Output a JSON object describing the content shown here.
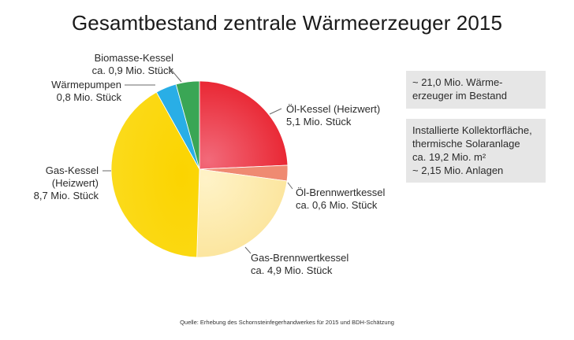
{
  "chart_data": {
    "type": "pie",
    "title": "Gesamtbestand zentrale Wärmeerzeuger 2015",
    "unit": "Mio. Stück",
    "start_angle": "12 o'clock, clockwise",
    "slices": [
      {
        "name": "Öl-Kessel (Heizwert)",
        "value": 5.1,
        "label_value": "5,1 Mio. Stück",
        "color": "#e8212e"
      },
      {
        "name": "Öl-Brennwertkessel",
        "value": 0.6,
        "label_value": "ca. 0,6 Mio. Stück",
        "color": "#ef8a72"
      },
      {
        "name": "Gas-Brennwertkessel",
        "value": 4.9,
        "label_value": "ca. 4,9 Mio. Stück",
        "color": "#fdeaa6"
      },
      {
        "name": "Gas-Kessel (Heizwert)",
        "value": 8.7,
        "label_value": "8,7 Mio. Stück",
        "color": "#fbd600"
      },
      {
        "name": "Wärmepumpen",
        "value": 0.8,
        "label_value": "0,8 Mio. Stück",
        "color": "#29aee6"
      },
      {
        "name": "Biomasse-Kessel",
        "value": 0.9,
        "label_value": "ca. 0,9 Mio. Stück",
        "color": "#3aa655"
      }
    ],
    "total": 21.0,
    "annotations": [
      "~ 21,0 Mio. Wärmeerzeuger im Bestand",
      "Installierte Kollektorfläche, thermische Solaranlage ca. 19,2 Mio. m² ~ 2,15 Mio. Anlagen"
    ]
  },
  "title": "Gesamtbestand zentrale Wärmeerzeuger 2015",
  "labels": {
    "oel_kessel": {
      "line1": "Öl-Kessel (Heizwert)",
      "line2": "5,1 Mio. Stück"
    },
    "oel_brennwert": {
      "line1": "Öl-Brennwertkessel",
      "line2": "ca. 0,6 Mio. Stück"
    },
    "gas_brennwert": {
      "line1": "Gas-Brennwertkessel",
      "line2": "ca. 4,9 Mio. Stück"
    },
    "gas_kessel": {
      "line1": "Gas-Kessel",
      "line2": "(Heizwert)",
      "line3": "8,7 Mio. Stück"
    },
    "waermepumpen": {
      "line1": "Wärmepumpen",
      "line2": "0,8 Mio. Stück"
    },
    "biomasse": {
      "line1": "Biomasse-Kessel",
      "line2": "ca. 0,9 Mio. Stück"
    }
  },
  "infoboxes": {
    "total": {
      "line1": "~ 21,0 Mio. Wärme-",
      "line2": "erzeuger im Bestand"
    },
    "solar": {
      "line1": "Installierte Kollektorfläche,",
      "line2": "thermische Solaranlage",
      "line3": "ca. 19,2 Mio. m²",
      "line4": "~ 2,15 Mio. Anlagen"
    }
  },
  "source": "Quelle: Erhebung des Schornsteinfegerhandwerkes für 2015 und BDH-Schätzung"
}
